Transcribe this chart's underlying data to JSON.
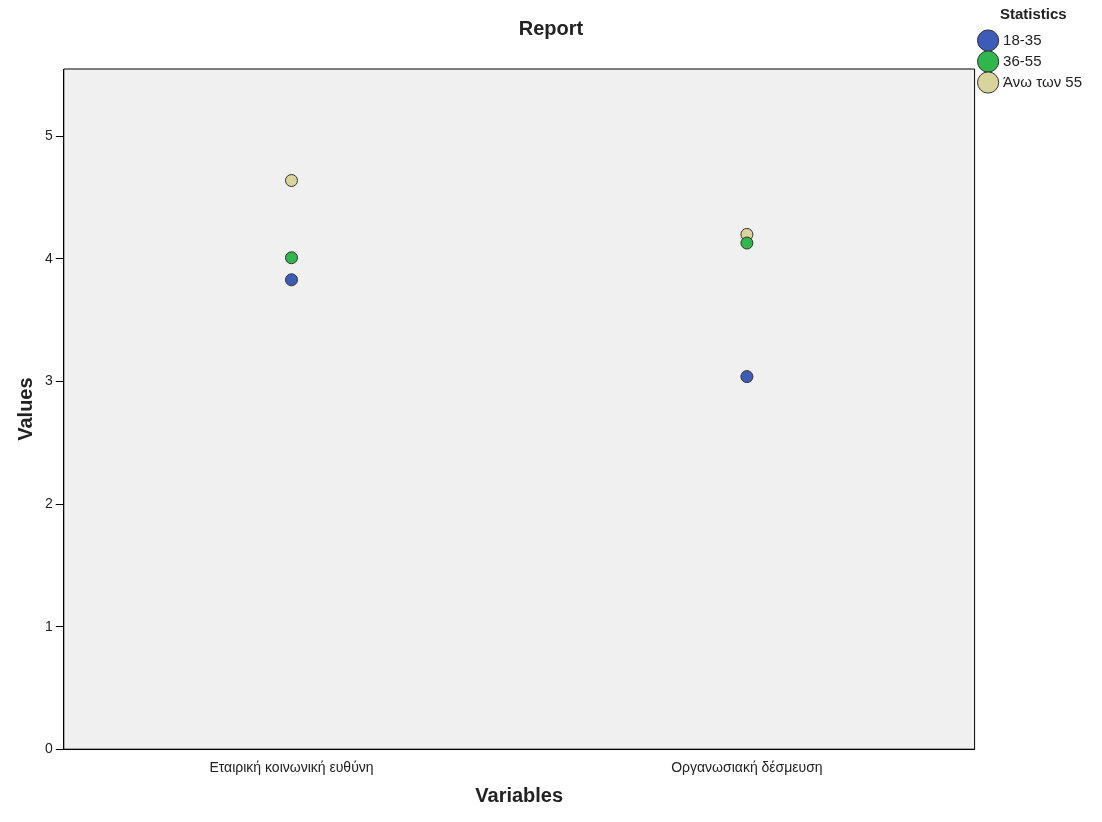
{
  "chart_data": {
    "type": "scatter",
    "title": "Report",
    "xlabel": "Variables",
    "ylabel": "Values",
    "legend_title": "Statistics",
    "categories": [
      "Εταιρική κοινωνική ευθύνη",
      "Οργανωσιακή δέσμευση"
    ],
    "series": [
      {
        "name": "18-35",
        "color": "#3c5cb8",
        "values": [
          3.83,
          3.04
        ]
      },
      {
        "name": "36-55",
        "color": "#2fb64c",
        "values": [
          4.01,
          4.13
        ]
      },
      {
        "name": "Άνω των 55",
        "color": "#d9d49b",
        "values": [
          4.64,
          4.2
        ]
      }
    ],
    "ylim": [
      0,
      5.55
    ],
    "yticks": [
      0,
      1,
      2,
      3,
      4,
      5
    ],
    "grid": false,
    "legend": "top right",
    "marker": "circle"
  }
}
